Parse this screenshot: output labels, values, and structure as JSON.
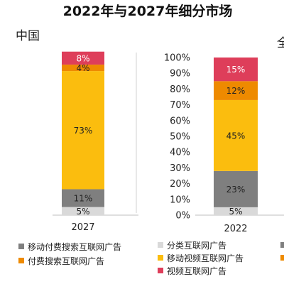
{
  "title": "2022年与2027年细分市场",
  "panels": [
    {
      "label": "中国"
    },
    {
      "label": "全"
    }
  ],
  "colors": {
    "mobile_paid_search": "#7f7f7f",
    "classified": "#d9d9d9",
    "paid_search": "#ee8a00",
    "mobile_video": "#fbbd0e",
    "video": "#de3e5a"
  },
  "chart_data": [
    {
      "type": "bar",
      "stacked": true,
      "panel": "中国",
      "categories": [
        "2027"
      ],
      "series": [
        {
          "key": "classified",
          "name": "分类互联网广告",
          "values": [
            5
          ],
          "labels": [
            "5%"
          ]
        },
        {
          "key": "mobile_paid_search",
          "name": "移动付费搜索互联网广告",
          "values": [
            11
          ],
          "labels": [
            "11%"
          ]
        },
        {
          "key": "mobile_video",
          "name": "移动视频互联网广告",
          "values": [
            73
          ],
          "labels": [
            "73%"
          ]
        },
        {
          "key": "paid_search",
          "name": "付费搜索互联网广告",
          "values": [
            4
          ],
          "labels": [
            "4%"
          ]
        },
        {
          "key": "video",
          "name": "视频互联网广告",
          "values": [
            8
          ],
          "labels": [
            "8%"
          ]
        }
      ],
      "ylim": [
        0,
        100
      ],
      "yaxis_visible": false
    },
    {
      "type": "bar",
      "stacked": true,
      "panel": "全",
      "categories": [
        "2022"
      ],
      "series": [
        {
          "key": "classified",
          "name": "分类互联网广告",
          "values": [
            5
          ],
          "labels": [
            "5%"
          ]
        },
        {
          "key": "mobile_paid_search",
          "name": "移动付费搜索互联网广告",
          "values": [
            23
          ],
          "labels": [
            "23%"
          ]
        },
        {
          "key": "mobile_video",
          "name": "移动视频互联网广告",
          "values": [
            45
          ],
          "labels": [
            "45%"
          ]
        },
        {
          "key": "paid_search",
          "name": "付费搜索互联网广告",
          "values": [
            12
          ],
          "labels": [
            "12%"
          ]
        },
        {
          "key": "video",
          "name": "视频互联网广告",
          "values": [
            15
          ],
          "labels": [
            "15%"
          ]
        }
      ],
      "ylim": [
        0,
        100
      ],
      "yticks": [
        "0%",
        "10%",
        "20%",
        "30%",
        "40%",
        "50%",
        "60%",
        "70%",
        "80%",
        "90%",
        "100%"
      ],
      "yaxis_visible": true
    }
  ],
  "legend": [
    {
      "key": "mobile_paid_search",
      "label": "移动付费搜索互联网广告"
    },
    {
      "key": "paid_search",
      "label": "付费搜索互联网广告"
    },
    {
      "key": "classified",
      "label": "分类互联网广告"
    },
    {
      "key": "mobile_video",
      "label": "移动视频互联网广告"
    },
    {
      "key": "video",
      "label": "视频互联网广告"
    },
    {
      "key": "mobile_paid_search",
      "label": ""
    },
    {
      "key": "paid_search",
      "label": ""
    }
  ]
}
